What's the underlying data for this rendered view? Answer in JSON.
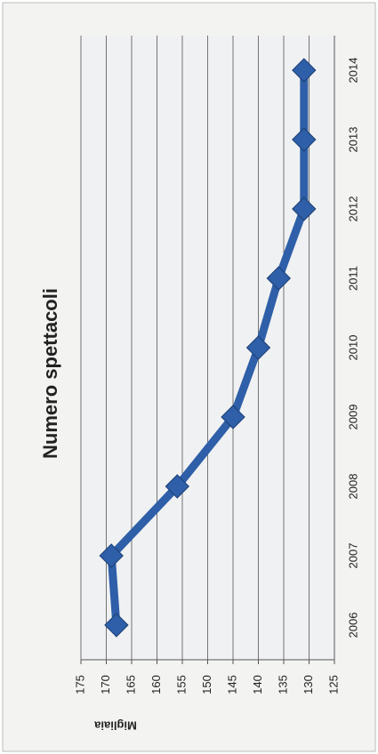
{
  "chart_data": {
    "type": "line",
    "title": "Numero spettacoli",
    "y_label": "Migliaia",
    "categories": [
      "2006",
      "2007",
      "2008",
      "2009",
      "2010",
      "2011",
      "2012",
      "2013",
      "2014"
    ],
    "values": [
      168,
      169,
      156,
      145,
      140,
      136,
      131,
      131,
      131
    ],
    "color": "#2e5fa8",
    "ylim": [
      125,
      175
    ],
    "yticks": [
      125,
      130,
      135,
      140,
      145,
      150,
      155,
      160,
      165,
      170,
      175
    ],
    "grid": true
  }
}
